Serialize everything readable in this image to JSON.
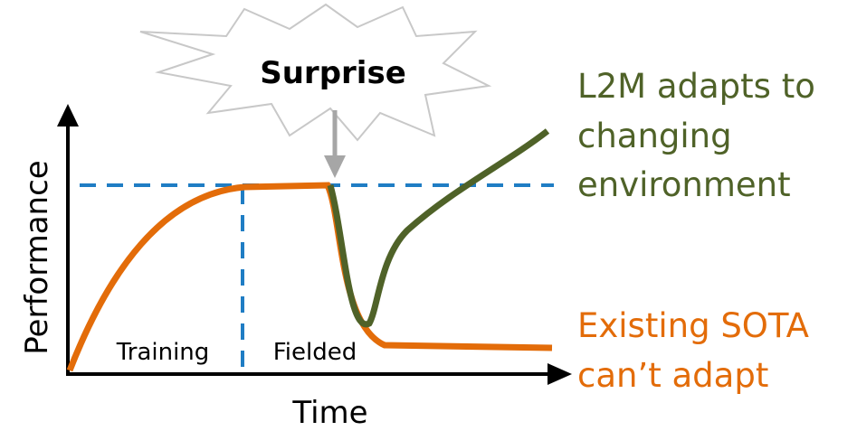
{
  "surprise": "Surprise",
  "y_axis_label": "Performance",
  "x_axis_label": "Time",
  "phases": [
    "Training",
    "Fielded"
  ],
  "l2m_label": [
    "L2M adapts to",
    "changing",
    "environment"
  ],
  "sota_label": [
    "Existing SOTA",
    "can’t adapt"
  ]
}
